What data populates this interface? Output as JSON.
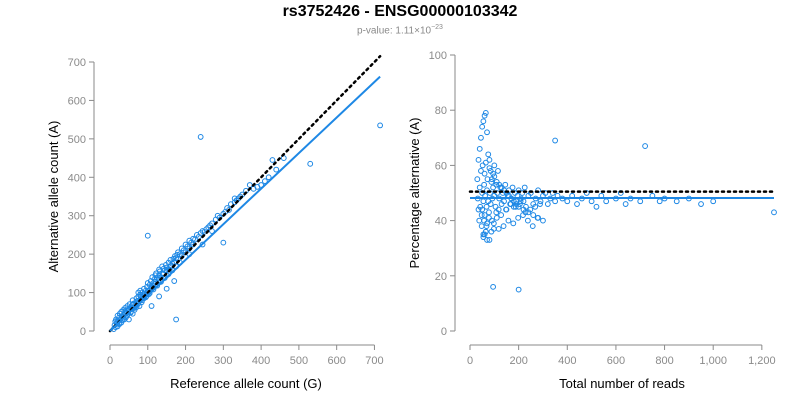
{
  "header": {
    "title": "rs3752426 - ENSG00000103342",
    "pvalue_prefix": "p-value: 1.11×10",
    "pvalue_exponent": "−23"
  },
  "colors": {
    "series": "#1e88e5",
    "reference_line": "#000000",
    "axis": "#8a8a8a"
  },
  "chart_data": [
    {
      "type": "scatter",
      "xlabel": "Reference allele count (G)",
      "ylabel": "Alternative allele count (A)",
      "xlim": [
        0,
        720
      ],
      "ylim": [
        0,
        700
      ],
      "xticks": [
        "0",
        "100",
        "200",
        "300",
        "400",
        "500",
        "600",
        "700"
      ],
      "yticks": [
        "0",
        "100",
        "200",
        "300",
        "400",
        "500",
        "600",
        "700"
      ],
      "grid": false,
      "legend": "none",
      "points_x": [
        10,
        12,
        14,
        15,
        16,
        18,
        20,
        20,
        22,
        24,
        25,
        26,
        28,
        30,
        30,
        32,
        33,
        35,
        36,
        38,
        40,
        40,
        42,
        44,
        45,
        46,
        48,
        50,
        50,
        52,
        55,
        55,
        58,
        60,
        60,
        62,
        64,
        65,
        68,
        70,
        70,
        72,
        74,
        75,
        78,
        80,
        80,
        82,
        84,
        85,
        88,
        90,
        90,
        92,
        95,
        96,
        98,
        100,
        100,
        102,
        105,
        106,
        108,
        110,
        112,
        114,
        115,
        118,
        120,
        120,
        122,
        125,
        128,
        130,
        130,
        132,
        135,
        138,
        140,
        142,
        145,
        148,
        150,
        150,
        155,
        158,
        160,
        162,
        165,
        168,
        170,
        172,
        175,
        178,
        180,
        185,
        190,
        195,
        200,
        205,
        210,
        215,
        220,
        225,
        230,
        235,
        240,
        245,
        250,
        255,
        260,
        265,
        270,
        280,
        285,
        290,
        300,
        305,
        310,
        315,
        320,
        330,
        335,
        340,
        345,
        350,
        360,
        380,
        390,
        400,
        410,
        420,
        440,
        460,
        530,
        715,
        20,
        30,
        40,
        50,
        60,
        70,
        80,
        90,
        100,
        110,
        120,
        130,
        140,
        150,
        160,
        170,
        180,
        190,
        200,
        210,
        220,
        25,
        35,
        45,
        55,
        65,
        75,
        85,
        95,
        105,
        115,
        125,
        135,
        145,
        155,
        165,
        175,
        185,
        100,
        75,
        110,
        130,
        150,
        170,
        210,
        240,
        270,
        300,
        175,
        245,
        330,
        370,
        430,
        80,
        60,
        40
      ],
      "points_y": [
        5,
        15,
        25,
        10,
        30,
        20,
        40,
        12,
        25,
        35,
        18,
        45,
        30,
        22,
        50,
        38,
        28,
        55,
        42,
        30,
        60,
        48,
        35,
        52,
        40,
        65,
        45,
        55,
        30,
        70,
        50,
        62,
        58,
        45,
        80,
        60,
        72,
        55,
        68,
        85,
        62,
        78,
        70,
        90,
        65,
        95,
        80,
        88,
        75,
        100,
        92,
        85,
        110,
        98,
        105,
        90,
        115,
        100,
        125,
        95,
        120,
        108,
        130,
        112,
        140,
        118,
        125,
        135,
        145,
        128,
        150,
        138,
        132,
        160,
        145,
        155,
        140,
        168,
        150,
        162,
        158,
        172,
        165,
        145,
        178,
        160,
        185,
        170,
        175,
        188,
        180,
        195,
        190,
        198,
        205,
        200,
        215,
        210,
        225,
        220,
        235,
        230,
        240,
        238,
        250,
        245,
        255,
        260,
        258,
        265,
        270,
        275,
        280,
        290,
        300,
        295,
        305,
        310,
        320,
        315,
        330,
        335,
        340,
        345,
        350,
        355,
        365,
        370,
        375,
        380,
        390,
        400,
        420,
        450,
        435,
        535,
        28,
        35,
        45,
        58,
        68,
        75,
        82,
        95,
        105,
        115,
        122,
        138,
        148,
        158,
        168,
        178,
        188,
        195,
        205,
        215,
        225,
        20,
        32,
        40,
        48,
        60,
        72,
        80,
        88,
        98,
        108,
        118,
        128,
        138,
        148,
        158,
        168,
        178,
        248,
        100,
        65,
        90,
        110,
        130,
        200,
        505,
        260,
        230,
        30,
        225,
        345,
        380,
        445,
        105,
        70,
        52
      ],
      "fit_line": {
        "x": [
          0,
          715
        ],
        "y": [
          0,
          662
        ]
      },
      "reference_line": {
        "x": [
          0,
          715
        ],
        "y": [
          0,
          715
        ],
        "style": "dotted"
      }
    },
    {
      "type": "scatter",
      "xlabel": "Total number of reads",
      "ylabel": "Percentage alternative (A)",
      "xlim": [
        0,
        1250
      ],
      "ylim": [
        0,
        100
      ],
      "xticks": [
        "0",
        "200",
        "400",
        "600",
        "800",
        "1,000",
        "1,200"
      ],
      "yticks": [
        "0",
        "20",
        "40",
        "60",
        "80",
        "100"
      ],
      "grid": false,
      "legend": "none",
      "points_x": [
        30,
        32,
        35,
        38,
        40,
        42,
        45,
        48,
        50,
        50,
        52,
        55,
        55,
        58,
        60,
        60,
        62,
        65,
        65,
        68,
        70,
        70,
        72,
        75,
        78,
        80,
        80,
        82,
        85,
        88,
        90,
        92,
        95,
        98,
        100,
        100,
        105,
        108,
        110,
        112,
        115,
        118,
        120,
        125,
        130,
        135,
        140,
        145,
        150,
        155,
        160,
        165,
        170,
        175,
        180,
        185,
        190,
        195,
        200,
        205,
        210,
        215,
        220,
        225,
        230,
        240,
        250,
        260,
        270,
        280,
        290,
        300,
        310,
        320,
        330,
        340,
        350,
        360,
        380,
        400,
        420,
        440,
        460,
        480,
        500,
        520,
        540,
        560,
        600,
        640,
        660,
        700,
        750,
        780,
        800,
        850,
        900,
        950,
        1000,
        1250,
        40,
        45,
        50,
        55,
        60,
        65,
        70,
        75,
        80,
        85,
        90,
        95,
        100,
        110,
        120,
        130,
        140,
        150,
        160,
        170,
        180,
        190,
        200,
        220,
        240,
        260,
        280,
        300,
        35,
        48,
        58,
        68,
        78,
        88,
        98,
        108,
        118,
        128,
        138,
        148,
        158,
        168,
        178,
        188,
        198,
        208,
        218,
        228,
        238,
        248,
        258,
        268,
        278,
        288,
        95,
        200,
        350,
        620,
        720,
        55,
        60,
        65,
        70
      ],
      "points_y": [
        55,
        48,
        62,
        40,
        52,
        45,
        58,
        38,
        50,
        44,
        60,
        35,
        47,
        53,
        42,
        57,
        49,
        36,
        61,
        45,
        51,
        39,
        55,
        47,
        43,
        59,
        33,
        50,
        46,
        54,
        40,
        48,
        52,
        37,
        49,
        56,
        45,
        53,
        41,
        50,
        58,
        44,
        48,
        52,
        46,
        50,
        47,
        53,
        44,
        49,
        51,
        46,
        48,
        52,
        45,
        50,
        47,
        49,
        51,
        46,
        48,
        50,
        47,
        52,
        45,
        49,
        50,
        46,
        48,
        51,
        47,
        49,
        50,
        46,
        48,
        50,
        47,
        49,
        48,
        47,
        49,
        46,
        48,
        50,
        47,
        45,
        49,
        47,
        48,
        46,
        48,
        47,
        49,
        47,
        48,
        47,
        48,
        46,
        47,
        43,
        66,
        70,
        74,
        76,
        78,
        79,
        72,
        64,
        62,
        58,
        55,
        57,
        60,
        54,
        53,
        52,
        51,
        50,
        49,
        48,
        47,
        46,
        45,
        44,
        43,
        42,
        41,
        40,
        44,
        42,
        40,
        38,
        41,
        36,
        39,
        43,
        37,
        42,
        38,
        44,
        40,
        46,
        39,
        45,
        41,
        47,
        42,
        43,
        40,
        44,
        38,
        45,
        41,
        46,
        16,
        15,
        69,
        50,
        67,
        34,
        35,
        36,
        33
      ],
      "fit_line": {
        "x": [
          0,
          1250
        ],
        "y": [
          48.2,
          48.2
        ]
      },
      "reference_line": {
        "x": [
          0,
          1250
        ],
        "y": [
          50.5,
          50.5
        ],
        "style": "dotted"
      }
    }
  ]
}
